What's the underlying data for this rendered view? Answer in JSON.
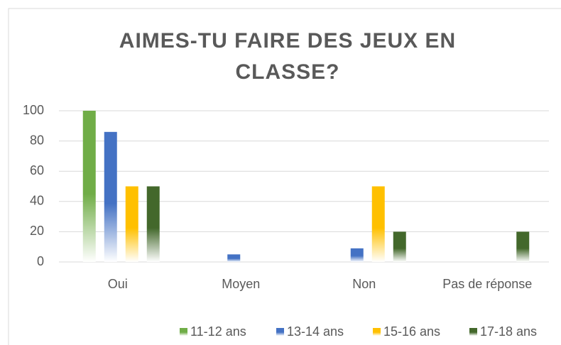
{
  "chart_data": {
    "type": "bar",
    "title": "AIMES-TU FAIRE DES JEUX EN CLASSE?",
    "categories": [
      "Oui",
      "Moyen",
      "Non",
      "Pas de réponse"
    ],
    "series": [
      {
        "name": "11-12 ans",
        "color": "#70ad47",
        "values": [
          100,
          0,
          0,
          0
        ]
      },
      {
        "name": "13-14 ans",
        "color": "#4472c4",
        "values": [
          86,
          5,
          9,
          0
        ]
      },
      {
        "name": "15-16 ans",
        "color": "#ffc000",
        "values": [
          50,
          0,
          50,
          0
        ]
      },
      {
        "name": "17-18 ans",
        "color": "#43682b",
        "values": [
          50,
          0,
          20,
          20
        ]
      }
    ],
    "ylim": [
      0,
      100
    ],
    "yticks": [
      0,
      20,
      40,
      60,
      80,
      100
    ],
    "grid": true,
    "legend": "bottom"
  }
}
